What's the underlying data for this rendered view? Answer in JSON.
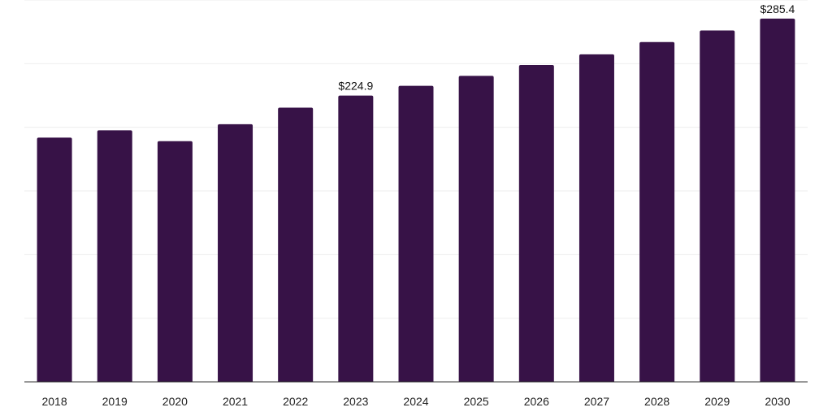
{
  "chart_data": {
    "type": "bar",
    "categories": [
      "2018",
      "2019",
      "2020",
      "2021",
      "2022",
      "2023",
      "2024",
      "2025",
      "2026",
      "2027",
      "2028",
      "2029",
      "2030"
    ],
    "values": [
      191.9,
      197.6,
      189.1,
      202.4,
      215.4,
      224.9,
      232.6,
      240.4,
      248.9,
      257.3,
      267.0,
      276.1,
      285.4
    ],
    "data_labels": [
      {
        "index": 5,
        "text": "$224.9"
      },
      {
        "index": 12,
        "text": "$285.4"
      }
    ],
    "title": "",
    "xlabel": "",
    "ylabel": "",
    "ylim": [
      0,
      300
    ],
    "grid": true,
    "bar_color": "#371247",
    "grid_color": "#eeeeee",
    "axis_color": "#333333"
  }
}
